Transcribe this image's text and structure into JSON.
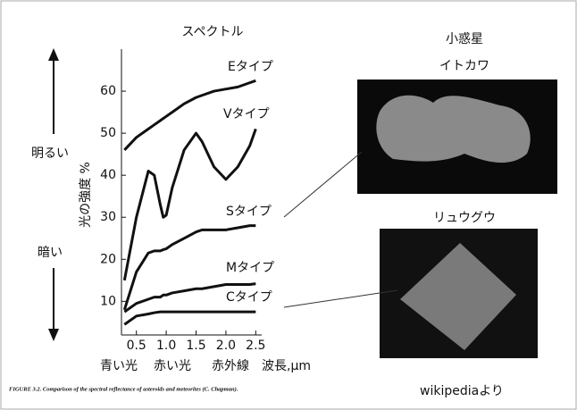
{
  "chart_data": {
    "type": "line",
    "title": "スペクトル",
    "y_label": "光の強度 %",
    "x_label": "波長,μm",
    "x": [
      0.3,
      0.5,
      0.7,
      0.8,
      0.9,
      0.95,
      1.0,
      1.1,
      1.3,
      1.5,
      1.6,
      1.8,
      2.0,
      2.2,
      2.4,
      2.5
    ],
    "series": [
      {
        "name": "Eタイプ",
        "color": "#111111",
        "values": [
          46,
          49,
          51,
          52,
          53,
          53.5,
          54,
          55,
          57,
          58.5,
          59,
          60,
          60.5,
          61,
          62,
          62.5
        ]
      },
      {
        "name": "Vタイプ",
        "color": "#111111",
        "values": [
          15,
          30,
          41,
          40,
          33,
          30,
          30.5,
          37,
          46,
          50,
          48,
          42,
          39,
          42,
          47,
          51
        ]
      },
      {
        "name": "Sタイプ",
        "color": "#111111",
        "values": [
          8,
          17,
          21.5,
          22,
          22,
          22.3,
          22.5,
          23.5,
          25,
          26.5,
          27,
          27,
          27,
          27.5,
          28,
          28
        ]
      },
      {
        "name": "Mタイプ",
        "color": "#111111",
        "values": [
          7.5,
          9.5,
          10.5,
          11,
          11,
          11.5,
          11.5,
          12,
          12.5,
          13,
          13,
          13.5,
          14,
          14,
          14,
          14.2
        ]
      },
      {
        "name": "Cタイプ",
        "color": "#111111",
        "values": [
          4.5,
          6.5,
          7,
          7.3,
          7.5,
          7.5,
          7.5,
          7.5,
          7.5,
          7.5,
          7.5,
          7.5,
          7.5,
          7.5,
          7.5,
          7.5
        ]
      }
    ],
    "xlim": [
      0.25,
      2.6
    ],
    "ylim": [
      2,
      70
    ],
    "xticks": [
      0.5,
      {
        "value": 1,
        "label": "1.0"
      },
      1.5,
      {
        "value": 2,
        "label": "2.0"
      },
      2.5
    ],
    "yticks": [
      10,
      20,
      30,
      40,
      50,
      60
    ],
    "grid": false
  },
  "brightness": {
    "bright": "明るい",
    "dark": "暗い"
  },
  "light_bands": [
    "青い光",
    "赤い光",
    "赤外線"
  ],
  "asteroids": {
    "title": "小惑星",
    "itokawa": "イトカワ",
    "ryugu": "リュウグウ",
    "source": "wikipediaより"
  },
  "caption": "FIGURE 3.2. Comparison of the spectral reflectance of asteroids and meteorites (C. Chapman)."
}
